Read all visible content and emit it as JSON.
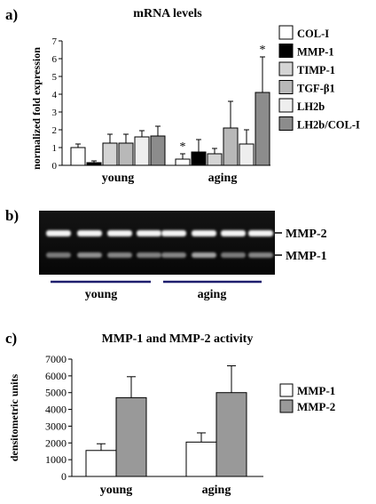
{
  "panels": {
    "a": {
      "letter": "a)"
    },
    "b": {
      "letter": "b)",
      "band_labels": [
        "MMP-2",
        "MMP-1"
      ],
      "group_labels": [
        "young",
        "aging"
      ]
    },
    "c": {
      "letter": "c)"
    }
  },
  "chart_data": [
    {
      "type": "bar",
      "title": "mRNA levels",
      "ylabel": "normalized fold expression",
      "xlabel": "",
      "ylim": [
        0,
        7
      ],
      "yticks": [
        0,
        1,
        2,
        3,
        4,
        5,
        6,
        7
      ],
      "categories": [
        "young",
        "aging"
      ],
      "legend_position": "right",
      "series": [
        {
          "name": "COL-I",
          "color": "#ffffff",
          "values": [
            1.0,
            0.35
          ],
          "errors": [
            0.2,
            0.3
          ],
          "significant": [
            false,
            true
          ]
        },
        {
          "name": "MMP-1",
          "color": "#000000",
          "values": [
            0.15,
            0.75
          ],
          "errors": [
            0.1,
            0.7
          ],
          "significant": [
            false,
            false
          ]
        },
        {
          "name": "TIMP-1",
          "color": "#d4d4d4",
          "values": [
            1.25,
            0.65
          ],
          "errors": [
            0.5,
            0.3
          ],
          "significant": [
            false,
            false
          ]
        },
        {
          "name": "TGF-β1",
          "color": "#b8b8b8",
          "values": [
            1.25,
            2.1
          ],
          "errors": [
            0.5,
            1.5
          ],
          "significant": [
            false,
            false
          ]
        },
        {
          "name": "LH2b",
          "color": "#eeeeee",
          "values": [
            1.6,
            1.2
          ],
          "errors": [
            0.35,
            0.8
          ],
          "significant": [
            false,
            false
          ]
        },
        {
          "name": "LH2b/COL-I",
          "color": "#8c8c8c",
          "values": [
            1.65,
            4.1
          ],
          "errors": [
            0.55,
            2.0
          ],
          "significant": [
            false,
            true
          ]
        }
      ],
      "annotation_symbol": "*"
    },
    {
      "type": "bar",
      "title": "MMP-1 and MMP-2 activity",
      "ylabel": "densitometric units",
      "xlabel": "",
      "ylim": [
        0,
        7000
      ],
      "yticks": [
        0,
        1000,
        2000,
        3000,
        4000,
        5000,
        6000,
        7000
      ],
      "categories": [
        "young",
        "aging"
      ],
      "legend_position": "right",
      "series": [
        {
          "name": "MMP-1",
          "color": "#ffffff",
          "values": [
            1550,
            2050
          ],
          "errors": [
            400,
            550
          ]
        },
        {
          "name": "MMP-2",
          "color": "#999999",
          "values": [
            4700,
            5000
          ],
          "errors": [
            1250,
            1600
          ]
        }
      ]
    }
  ]
}
